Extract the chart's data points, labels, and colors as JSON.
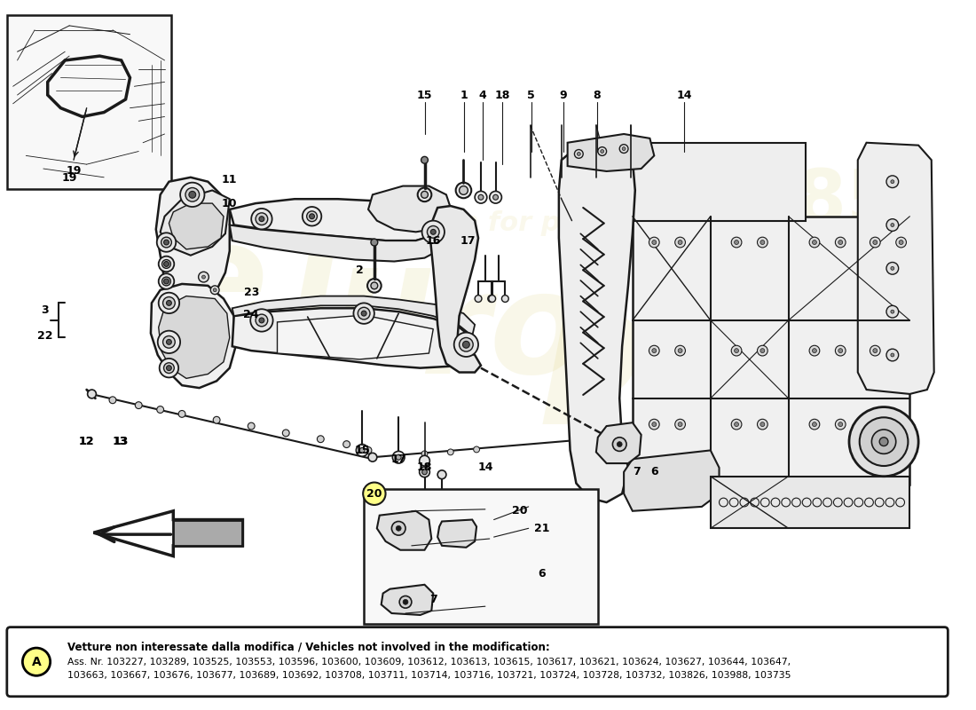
{
  "bg_color": "#ffffff",
  "line_color": "#1a1a1a",
  "light_color": "#aaaaaa",
  "watermark_color": "#c8b830",
  "bottom_box": {
    "circle_fill": "#ffff88",
    "text_bold": "Vetture non interessate dalla modifica / Vehicles not involved in the modification:",
    "text_line1": "Ass. Nr. 103227, 103289, 103525, 103553, 103596, 103600, 103609, 103612, 103613, 103615, 103617, 103621, 103624, 103627, 103644, 103647,",
    "text_line2": "103663, 103667, 103676, 103677, 103689, 103692, 103708, 103711, 103714, 103716, 103721, 103724, 103728, 103732, 103826, 103988, 103735"
  }
}
